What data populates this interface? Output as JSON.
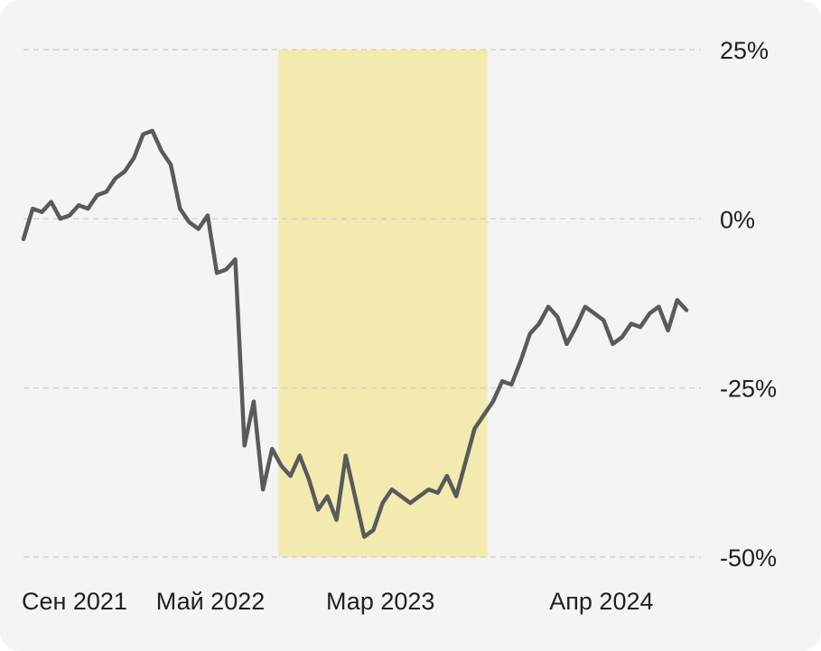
{
  "chart_data": {
    "type": "line",
    "title": "",
    "xlabel": "",
    "ylabel": "",
    "ylim": [
      -50,
      25
    ],
    "y_ticks": [
      "25%",
      "0%",
      "-25%",
      "-50%"
    ],
    "y_tick_values": [
      25,
      0,
      -25,
      -50
    ],
    "x_ticks": [
      "Сен 2021",
      "Май 2022",
      "Мар 2023",
      "Апр 2024"
    ],
    "x_tick_positions": [
      3,
      11,
      21,
      34
    ],
    "x_range": [
      0,
      39
    ],
    "highlight": {
      "from": 15,
      "to": 27.3,
      "color": "#f3eab0"
    },
    "grid": true,
    "line_color": "#5a5a5a",
    "series": [
      {
        "values": [
          -3,
          1.5,
          1,
          2.5,
          0,
          0.5,
          2,
          1.5,
          3.5,
          4,
          6,
          7,
          9,
          12.5,
          13,
          10,
          8,
          1.5,
          -0.5,
          -1.5,
          0.5,
          -8,
          -7.5,
          -6,
          -33.5,
          -27,
          -40,
          -34,
          -36.5,
          -38,
          -35,
          -38.5,
          -43,
          -41,
          -44.5,
          -35,
          -41,
          -47,
          -46,
          -42,
          -40,
          -41,
          -42,
          -41,
          -40,
          -40.5,
          -38,
          -41,
          -36,
          -31,
          -29,
          -27,
          -24,
          -24.5,
          -21,
          -17,
          -15.5,
          -13,
          -14.5,
          -18.5,
          -16,
          -13,
          -14,
          -15,
          -18.5,
          -17.5,
          -15.5,
          -16,
          -14,
          -13,
          -16.5,
          -12,
          -13.5
        ]
      }
    ]
  }
}
